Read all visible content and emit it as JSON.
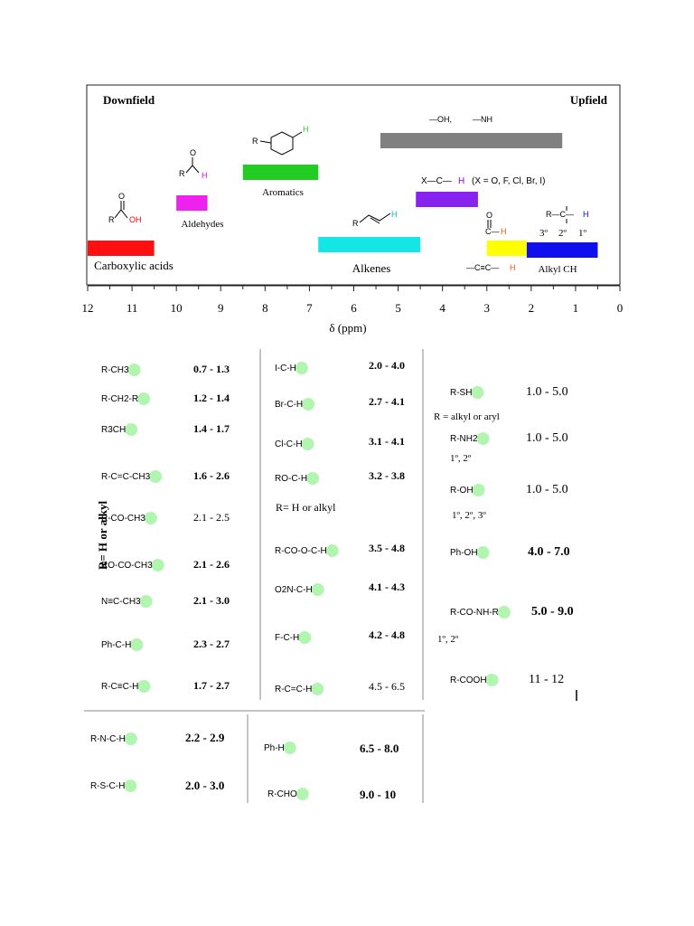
{
  "chart_data": {
    "type": "bar",
    "title": "",
    "direction_left": "Downfield",
    "direction_right": "Upfield",
    "xlabel": "δ (ppm)",
    "xlim": [
      12,
      0
    ],
    "x_ticks": [
      "12",
      "11",
      "10",
      "9",
      "8",
      "7",
      "6",
      "5",
      "4",
      "3",
      "2",
      "1",
      "0"
    ],
    "bars": [
      {
        "label": "Carboxylic acids",
        "range": [
          12,
          10.5
        ],
        "color": "#ff1010"
      },
      {
        "label": "Aldehydes",
        "range": [
          10,
          9.3
        ],
        "color": "#ee22ee"
      },
      {
        "label": "Aromatics",
        "range": [
          8.5,
          6.8
        ],
        "color": "#22cc22"
      },
      {
        "label": "Alkenes",
        "range": [
          6.8,
          4.5
        ],
        "color": "#14e6e6"
      },
      {
        "label": "X—C—H (X = O, F, Cl, Br, I)",
        "range": [
          4.6,
          3.2
        ],
        "color": "#8822ee"
      },
      {
        "label": "—OH, —NH",
        "range": [
          5.4,
          1.3
        ],
        "color": "#808080"
      },
      {
        "label": "O=C—H / —C≡C—H",
        "range": [
          3.0,
          2.1
        ],
        "color": "#ffff00"
      },
      {
        "label": "Alkyl CH",
        "range": [
          2.1,
          0.5
        ],
        "color": "#1010ee"
      }
    ],
    "alkyl_orders": [
      "3º",
      "2º",
      "1º"
    ]
  },
  "table": {
    "vertical_label": "R= H or alkyl",
    "col1": [
      {
        "group": "R-CH3",
        "range": "0.7 - 1.3"
      },
      {
        "group": "R-CH2-R",
        "range": "1.2 - 1.4"
      },
      {
        "group": "R3CH",
        "range": "1.4 - 1.7"
      },
      {
        "group": "R-C=C-CH3",
        "range": "1.6 - 2.6"
      },
      {
        "group": "R-CO-CH3",
        "range": "2.1 - 2.5"
      },
      {
        "group": "RO-CO-CH3",
        "range": "2.1 - 2.6"
      },
      {
        "group": "N≡C-CH3",
        "range": "2.1 - 3.0"
      },
      {
        "group": "Ph-C-H",
        "range": "2.3 - 2.7"
      },
      {
        "group": "R-C≡C-H",
        "range": "1.7 - 2.7"
      }
    ],
    "col2": [
      {
        "group": "I-C-H",
        "range": "2.0 - 4.0"
      },
      {
        "group": "Br-C-H",
        "range": "2.7 - 4.1"
      },
      {
        "group": "Cl-C-H",
        "range": "3.1 - 4.1"
      },
      {
        "group": "RO-C-H",
        "range": "3.2 - 3.8"
      },
      {
        "group": "R-CO-O-C-H",
        "range": "3.5 - 4.8"
      },
      {
        "group": "O2N-C-H",
        "range": "4.1 - 4.3"
      },
      {
        "group": "F-C-H",
        "range": "4.2 - 4.8"
      },
      {
        "group": "R-C=C-H",
        "range": "4.5 - 6.5"
      }
    ],
    "col2_note": "R= H or alkyl",
    "col3": [
      {
        "group": "R-SH",
        "range": "1.0 - 5.0"
      },
      {
        "group": "R-NH2",
        "range": "1.0 - 5.0"
      },
      {
        "group": "R-OH",
        "range": "1.0 - 5.0"
      },
      {
        "group": "Ph-OH",
        "range": "4.0 - 7.0"
      },
      {
        "group": "R-CO-NH-R",
        "range": "5.0 - 9.0"
      },
      {
        "group": "R-COOH",
        "range": "11 - 12"
      }
    ],
    "col3_notes": {
      "sh": "R = alkyl or aryl",
      "nh2": "1º, 2º",
      "oh": "1º, 2º, 3º",
      "amide": "1º, 2º"
    },
    "bottom": [
      {
        "group": "R-N-C-H",
        "range": "2.2 - 2.9"
      },
      {
        "group": "R-S-C-H",
        "range": "2.0 - 3.0"
      },
      {
        "group": "Ph-H",
        "range": "6.5 - 8.0"
      },
      {
        "group": "R-CHO",
        "range": "9.0 - 10"
      }
    ]
  }
}
